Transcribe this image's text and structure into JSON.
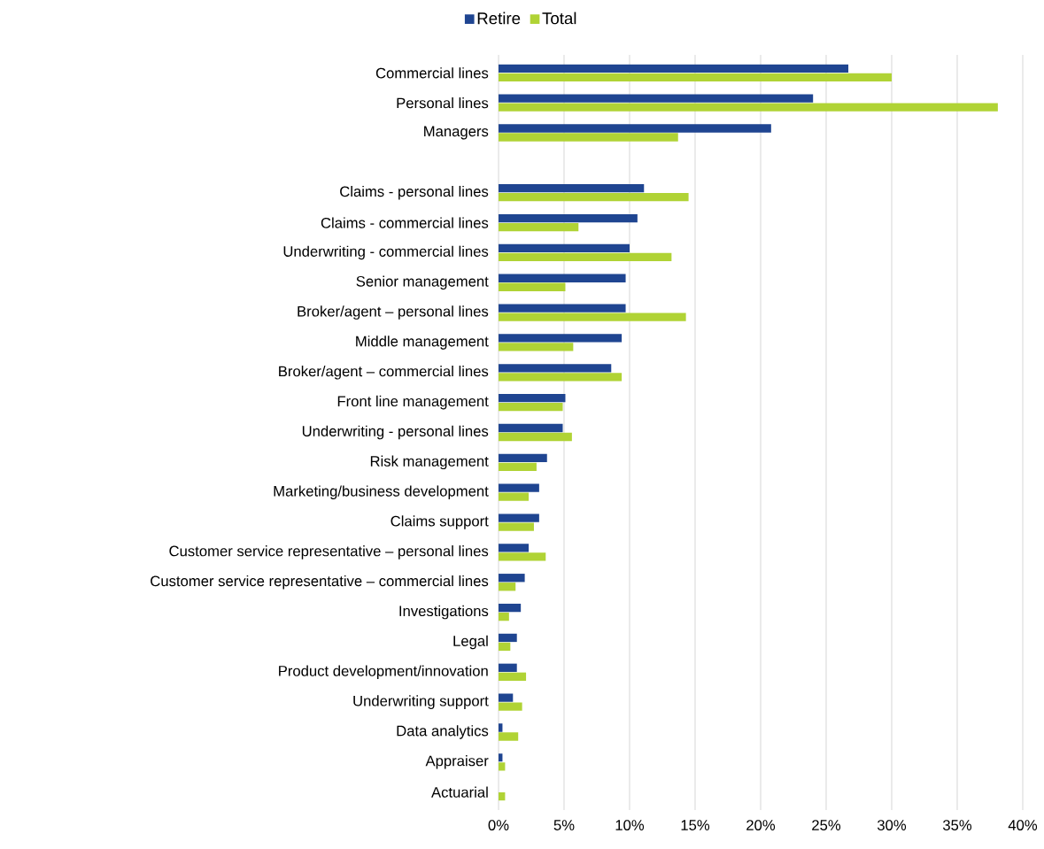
{
  "chart_data": {
    "type": "bar",
    "orientation": "horizontal",
    "categories": [
      "Commercial lines",
      "Personal lines",
      "Managers",
      null,
      "Claims - personal lines",
      "Claims - commercial lines",
      "Underwriting - commercial lines",
      "Senior management",
      "Broker/agent – personal lines",
      "Middle management",
      "Broker/agent – commercial lines",
      "Front line management",
      "Underwriting - personal lines",
      "Risk management",
      "Marketing/business development",
      "Claims support",
      "Customer service representative – personal lines",
      "Customer service representative – commercial lines",
      "Investigations",
      "Legal",
      "Product development/innovation",
      "Underwriting support",
      "Data analytics",
      "Appraiser",
      "Actuarial"
    ],
    "series": [
      {
        "name": "Retire",
        "color": "#1f4591",
        "values": [
          26.7,
          24.0,
          20.8,
          null,
          11.1,
          10.6,
          10.0,
          9.7,
          9.7,
          9.4,
          8.6,
          5.1,
          4.9,
          3.7,
          3.1,
          3.1,
          2.3,
          2.0,
          1.7,
          1.4,
          1.4,
          1.1,
          0.3,
          0.3,
          null
        ]
      },
      {
        "name": "Total",
        "color": "#b0d335",
        "values": [
          30.0,
          38.1,
          13.7,
          null,
          14.5,
          6.1,
          13.2,
          5.1,
          14.3,
          5.7,
          9.4,
          4.9,
          5.6,
          2.9,
          2.3,
          2.7,
          3.6,
          1.3,
          0.8,
          0.9,
          2.1,
          1.8,
          1.5,
          0.5,
          0.5
        ]
      }
    ],
    "xlim": [
      0,
      40
    ],
    "xticks": [
      {
        "value": 0,
        "label": "0%"
      },
      {
        "value": 5,
        "label": "5%"
      },
      {
        "value": 10,
        "label": "10%"
      },
      {
        "value": 15,
        "label": "15%"
      },
      {
        "value": 20,
        "label": "20%"
      },
      {
        "value": 25,
        "label": "25%"
      },
      {
        "value": 30,
        "label": "30%"
      },
      {
        "value": 35,
        "label": "35%"
      },
      {
        "value": 40,
        "label": "40%"
      }
    ],
    "grid": "x",
    "legend": "top"
  }
}
